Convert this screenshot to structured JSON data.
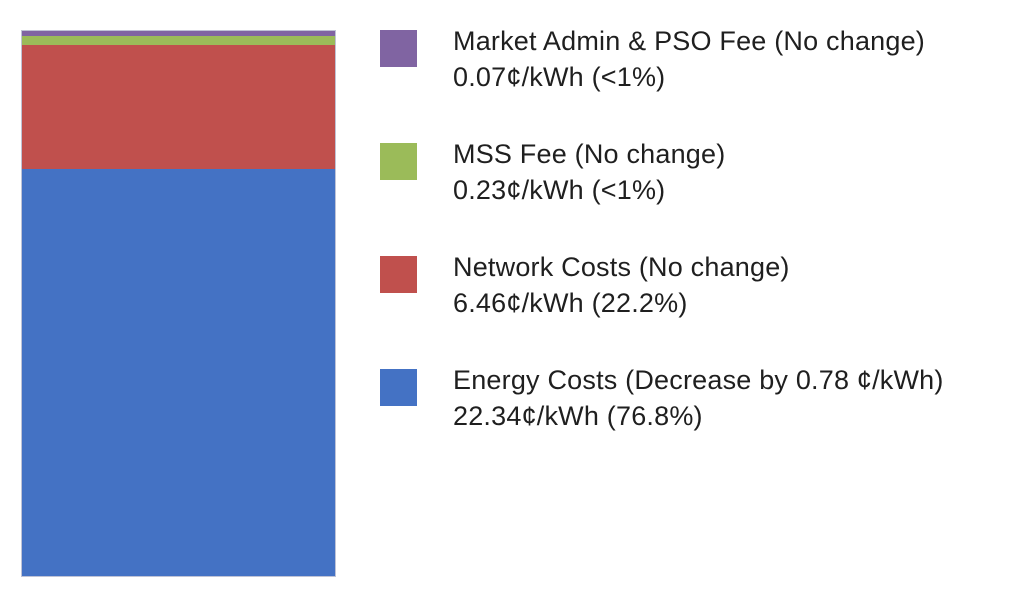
{
  "page": {
    "background": "#ffffff"
  },
  "chart_data": {
    "type": "bar",
    "variant": "single-stacked-column",
    "orientation": "vertical",
    "title": "",
    "xlabel": "",
    "ylabel": "",
    "unit": "¢/kWh",
    "total_value": 29.1,
    "axes_visible": false,
    "grid": false,
    "legend_position": "right",
    "series": [
      {
        "name": "Market Admin & PSO Fee",
        "value": 0.07,
        "share_label": "<1%",
        "change": "No change",
        "color": "#8064A2",
        "display_height_pct": 0.92
      },
      {
        "name": "MSS Fee",
        "value": 0.23,
        "share_label": "<1%",
        "change": "No change",
        "color": "#9BBB59",
        "display_height_pct": 1.65
      },
      {
        "name": "Network Costs",
        "value": 6.46,
        "share_label": "22.2%",
        "change": "No change",
        "color": "#C0504D",
        "display_height_pct": 22.75
      },
      {
        "name": "Energy Costs",
        "value": 22.34,
        "share_label": "76.8%",
        "change": "Decrease by 0.78 ¢/kWh",
        "color": "#4472C4",
        "display_height_pct": 74.68
      }
    ]
  },
  "legend": {
    "items": [
      {
        "line1": "Market Admin & PSO Fee (No change)",
        "line2": "0.07¢/kWh (<1%)",
        "color": "#8064A2"
      },
      {
        "line1": "MSS Fee (No change)",
        "line2": "0.23¢/kWh (<1%)",
        "color": "#9BBB59"
      },
      {
        "line1": "Network Costs (No change)",
        "line2": "6.46¢/kWh (22.2%)",
        "color": "#C0504D"
      },
      {
        "line1": "Energy Costs (Decrease by 0.78 ¢/kWh)",
        "line2": "22.34¢/kWh (76.8%)",
        "color": "#4472C4"
      }
    ]
  }
}
